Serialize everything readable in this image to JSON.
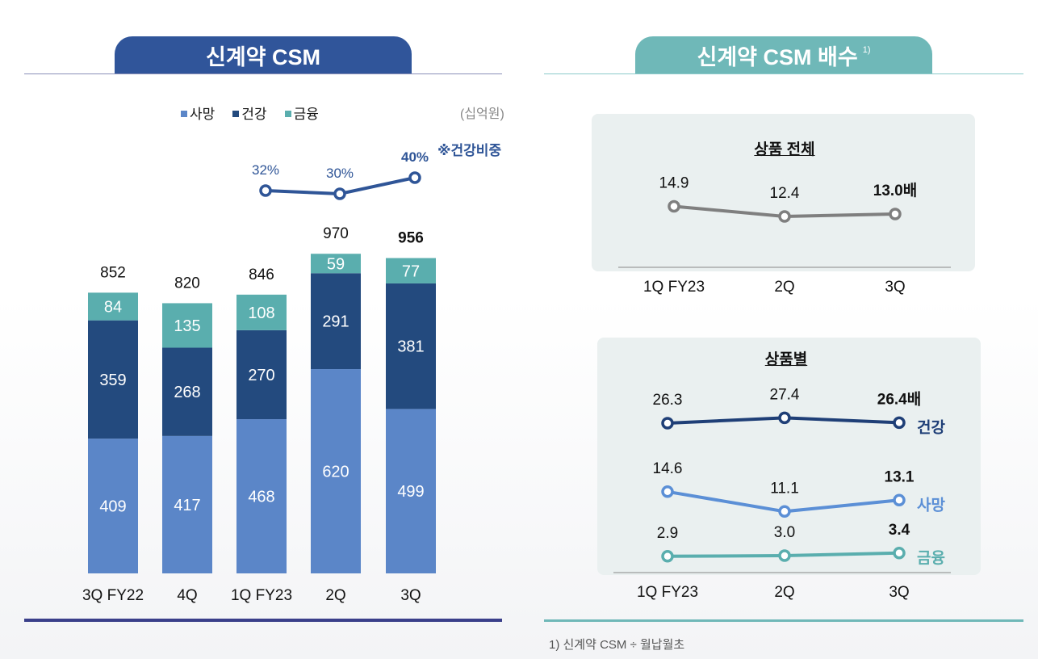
{
  "left_panel": {
    "title": "신계약 CSM",
    "unit": "(십억원)",
    "legend": [
      {
        "label": "사망",
        "color": "#5b86c8"
      },
      {
        "label": "건강",
        "color": "#234a7e"
      },
      {
        "label": "금융",
        "color": "#5aaeae"
      }
    ],
    "health_ratio_note": "※건강비중"
  },
  "right_panel": {
    "title": "신계약 CSM 배수",
    "title_sup": "1)",
    "box1_title": "상품 전체",
    "box2_title": "상품별",
    "footnote": "1) 신계약 CSM ÷ 월납월초"
  },
  "chart_data": [
    {
      "type": "bar",
      "stacked": true,
      "title": "신계약 CSM",
      "unit": "십억원",
      "categories": [
        "3Q FY22",
        "4Q",
        "1Q FY23",
        "2Q",
        "3Q"
      ],
      "series": [
        {
          "name": "사망",
          "values": [
            409,
            417,
            468,
            620,
            499
          ],
          "color": "#5b86c8"
        },
        {
          "name": "건강",
          "values": [
            359,
            268,
            270,
            291,
            381
          ],
          "color": "#234a7e"
        },
        {
          "name": "금융",
          "values": [
            84,
            135,
            108,
            59,
            77
          ],
          "color": "#5aaeae"
        }
      ],
      "totals": [
        "852",
        "820",
        "846",
        "970",
        "956"
      ],
      "health_ratio": {
        "categories": [
          "1Q FY23",
          "2Q",
          "3Q"
        ],
        "values": [
          32,
          30,
          40
        ],
        "labels": [
          "32%",
          "30%",
          "40%"
        ],
        "color": "#2f5597"
      }
    },
    {
      "type": "line",
      "title": "상품 전체",
      "categories": [
        "1Q FY23",
        "2Q",
        "3Q"
      ],
      "series": [
        {
          "name": "전체",
          "values": [
            14.9,
            12.4,
            13.0
          ],
          "labels": [
            "14.9",
            "12.4",
            "13.0배"
          ],
          "color": "#7f7f7f"
        }
      ]
    },
    {
      "type": "line",
      "title": "상품별",
      "categories": [
        "1Q FY23",
        "2Q",
        "3Q"
      ],
      "series": [
        {
          "name": "건강",
          "values": [
            26.3,
            27.4,
            26.4
          ],
          "labels": [
            "26.3",
            "27.4",
            "26.4배"
          ],
          "color": "#1f3f77"
        },
        {
          "name": "사망",
          "values": [
            14.6,
            11.1,
            13.1
          ],
          "labels": [
            "14.6",
            "11.1",
            "13.1"
          ],
          "color": "#5b8fd6"
        },
        {
          "name": "금융",
          "values": [
            2.9,
            3.0,
            3.4
          ],
          "labels": [
            "2.9",
            "3.0",
            "3.4"
          ],
          "color": "#5aaeae"
        }
      ]
    }
  ]
}
